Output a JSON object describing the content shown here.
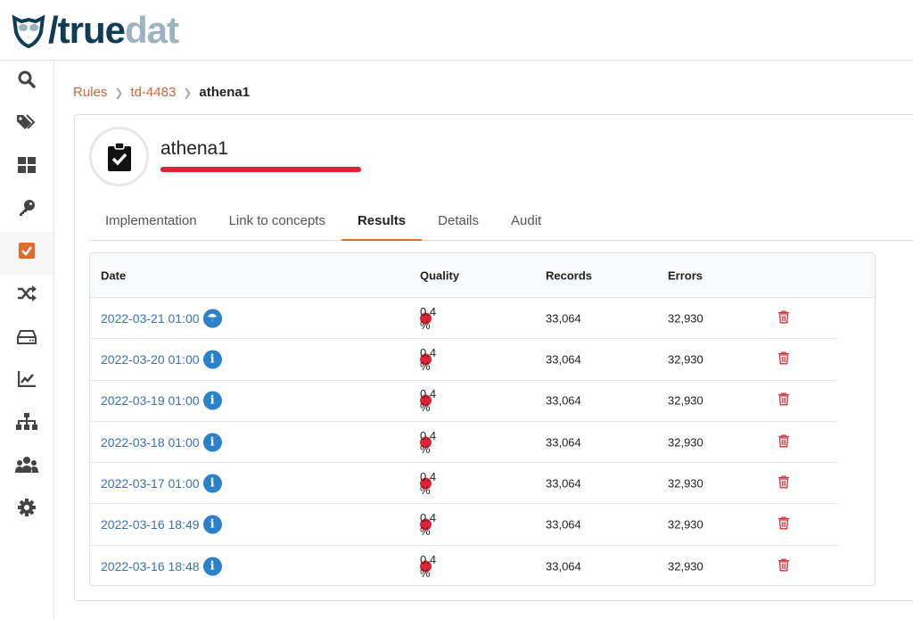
{
  "logo": {
    "part1": "true",
    "part2": "dat"
  },
  "sidebar": {
    "items": [
      {
        "icon": "search-icon"
      },
      {
        "icon": "tags-icon"
      },
      {
        "icon": "dashboard-icon"
      },
      {
        "icon": "key-icon"
      },
      {
        "icon": "check-square-icon",
        "active": true
      },
      {
        "icon": "shuffle-icon"
      },
      {
        "icon": "hdd-icon"
      },
      {
        "icon": "chart-line-icon"
      },
      {
        "icon": "sitemap-icon"
      },
      {
        "icon": "users-icon"
      },
      {
        "icon": "gear-icon"
      }
    ]
  },
  "breadcrumb": {
    "items": [
      "Rules",
      "td-4483"
    ],
    "current": "athena1"
  },
  "rule": {
    "title": "athena1",
    "status_color": "#e02236"
  },
  "tabs": [
    "Implementation",
    "Link to concepts",
    "Results",
    "Details",
    "Audit"
  ],
  "active_tab": "Results",
  "table": {
    "headers": [
      "Date",
      "Quality",
      "Records",
      "Errors"
    ],
    "rows": [
      {
        "date": "2022-03-21 01:00",
        "quality": "0.4 %",
        "records": "33,064",
        "errors": "32,930",
        "extra_icon": "umbrella-icon"
      },
      {
        "date": "2022-03-20 01:00",
        "quality": "0.4 %",
        "records": "33,064",
        "errors": "32,930"
      },
      {
        "date": "2022-03-19 01:00",
        "quality": "0.4 %",
        "records": "33,064",
        "errors": "32,930"
      },
      {
        "date": "2022-03-18 01:00",
        "quality": "0.4 %",
        "records": "33,064",
        "errors": "32,930"
      },
      {
        "date": "2022-03-17 01:00",
        "quality": "0.4 %",
        "records": "33,064",
        "errors": "32,930"
      },
      {
        "date": "2022-03-16 18:49",
        "quality": "0.4 %",
        "records": "33,064",
        "errors": "32,930"
      },
      {
        "date": "2022-03-16 18:48",
        "quality": "0.4 %",
        "records": "33,064",
        "errors": "32,930"
      }
    ]
  },
  "colors": {
    "accent": "#e06b2d",
    "link": "#3a73b0",
    "danger": "#e02236",
    "info": "#2b82c9"
  }
}
